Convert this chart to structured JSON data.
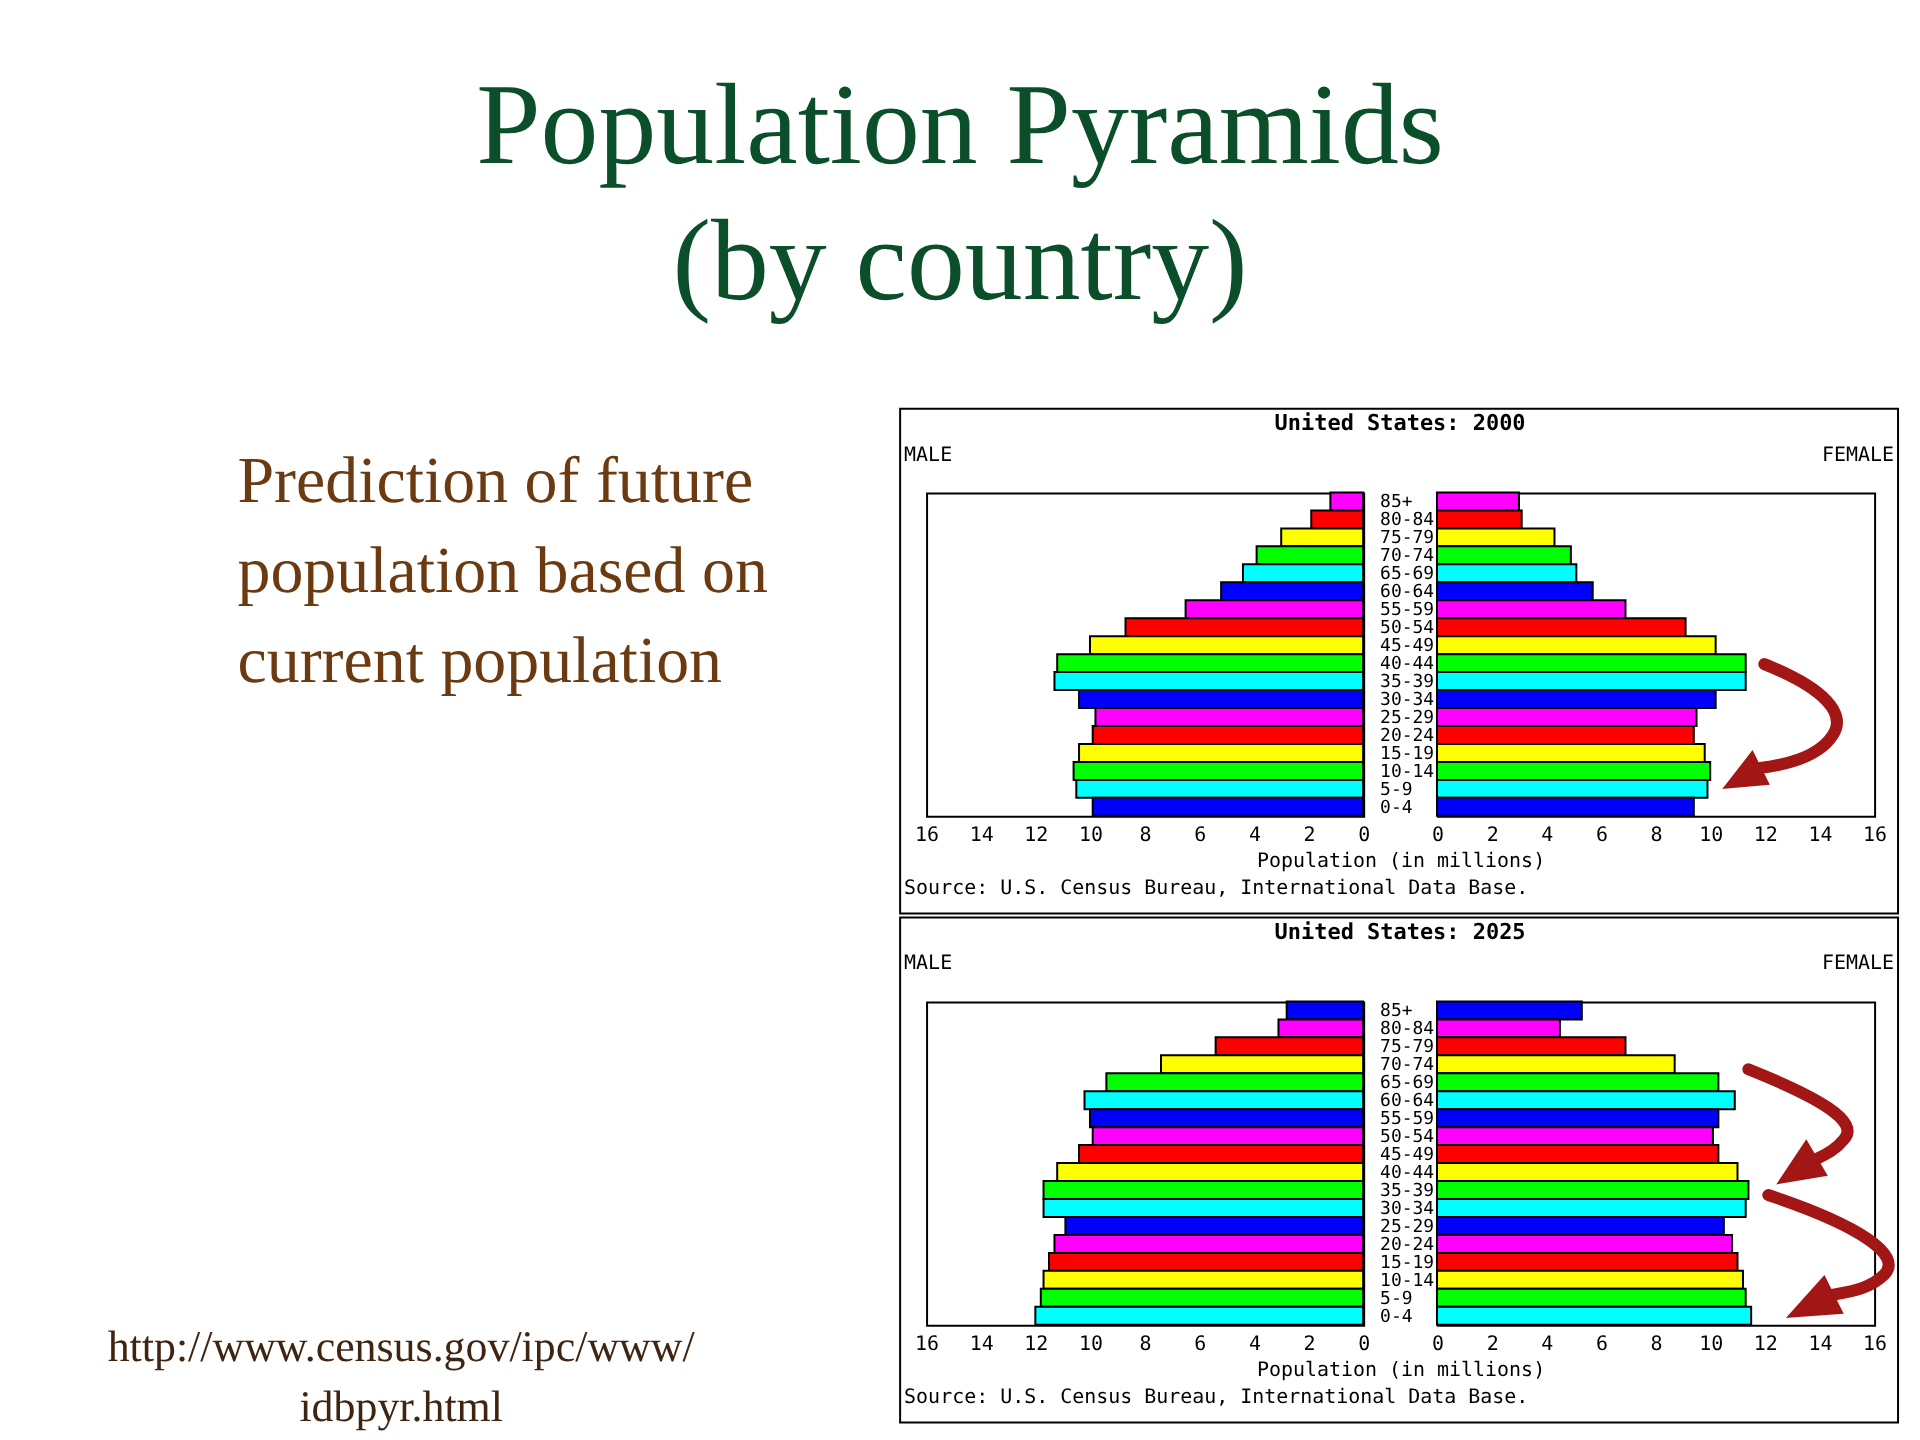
{
  "chart_data": [
    {
      "type": "other",
      "title": "Population Pyramids\n(by country)",
      "annotations": [
        "Prediction of future population based on current population",
        "http://www.census.gov/ipc/www/idbpyr.html"
      ]
    },
    {
      "type": "bar",
      "orientation": "horizontal",
      "title": "United States: 2000",
      "xlabel": "Population (in millions)",
      "annotations": [
        "Source: U.S. Census Bureau, International Data Base."
      ],
      "categories": [
        "85+",
        "80-84",
        "75-79",
        "70-74",
        "65-69",
        "60-64",
        "55-59",
        "50-54",
        "45-49",
        "40-44",
        "35-39",
        "30-34",
        "25-29",
        "20-24",
        "15-19",
        "10-14",
        "5-9",
        "0-4"
      ],
      "series": [
        {
          "name": "MALE",
          "colors": [
            "#ff00ff",
            "#ff0000",
            "#ffff00",
            "#00ff00",
            "#00ffff",
            "#0000ff",
            "#ff00ff",
            "#ff0000",
            "#ffff00",
            "#00ff00",
            "#00ffff",
            "#0000ff",
            "#ff00ff",
            "#ff0000",
            "#ffff00",
            "#00ff00",
            "#00ffff",
            "#0000ff"
          ],
          "values": [
            1.2,
            1.9,
            3.0,
            3.9,
            4.4,
            5.2,
            6.5,
            8.7,
            10.0,
            11.2,
            11.3,
            10.4,
            9.8,
            9.9,
            10.4,
            10.6,
            10.5,
            9.9
          ]
        }
      ],
      "xlim": [
        16,
        0
      ],
      "xticks": [
        16,
        14,
        12,
        10,
        8,
        6,
        4,
        2,
        0
      ],
      "tick_labels": "x"
    },
    {
      "type": "bar",
      "orientation": "horizontal",
      "categories": [
        "85+",
        "80-84",
        "75-79",
        "70-74",
        "65-69",
        "60-64",
        "55-59",
        "50-54",
        "45-49",
        "40-44",
        "35-39",
        "30-34",
        "25-29",
        "20-24",
        "15-19",
        "10-14",
        "5-9",
        "0-4"
      ],
      "series": [
        {
          "name": "FEMALE",
          "colors": [
            "#ff00ff",
            "#ff0000",
            "#ffff00",
            "#00ff00",
            "#00ffff",
            "#0000ff",
            "#ff00ff",
            "#ff0000",
            "#ffff00",
            "#00ff00",
            "#00ffff",
            "#0000ff",
            "#ff00ff",
            "#ff0000",
            "#ffff00",
            "#00ff00",
            "#00ffff",
            "#0000ff"
          ],
          "values": [
            3.0,
            3.1,
            4.3,
            4.9,
            5.1,
            5.7,
            6.9,
            9.1,
            10.2,
            11.3,
            11.3,
            10.2,
            9.5,
            9.4,
            9.8,
            10.0,
            9.9,
            9.4
          ]
        }
      ],
      "xlim": [
        0,
        16
      ],
      "xticks": [
        0,
        2,
        4,
        6,
        8,
        10,
        12,
        14,
        16
      ]
    },
    {
      "type": "bar",
      "orientation": "horizontal",
      "title": "United States: 2025",
      "xlabel": "Population (in millions)",
      "annotations": [
        "Source: U.S. Census Bureau, International Data Base."
      ],
      "categories": [
        "85+",
        "80-84",
        "75-79",
        "70-74",
        "65-69",
        "60-64",
        "55-59",
        "50-54",
        "45-49",
        "40-44",
        "35-39",
        "30-34",
        "25-29",
        "20-24",
        "15-19",
        "10-14",
        "5-9",
        "0-4"
      ],
      "series": [
        {
          "name": "MALE",
          "colors": [
            "#0000ff",
            "#ff00ff",
            "#ff0000",
            "#ffff00",
            "#00ff00",
            "#00ffff",
            "#0000ff",
            "#ff00ff",
            "#ff0000",
            "#ffff00",
            "#00ff00",
            "#00ffff",
            "#0000ff",
            "#ff00ff",
            "#ff0000",
            "#ffff00",
            "#00ff00",
            "#00ffff"
          ],
          "values": [
            2.8,
            3.1,
            5.4,
            7.4,
            9.4,
            10.2,
            10.0,
            9.9,
            10.4,
            11.2,
            11.7,
            11.7,
            10.9,
            11.3,
            11.5,
            11.7,
            11.8,
            12.0
          ]
        }
      ],
      "xlim": [
        16,
        0
      ],
      "xticks": [
        16,
        14,
        12,
        10,
        8,
        6,
        4,
        2,
        0
      ],
      "tick_labels": "x"
    },
    {
      "type": "bar",
      "orientation": "horizontal",
      "categories": [
        "85+",
        "80-84",
        "75-79",
        "70-74",
        "65-69",
        "60-64",
        "55-59",
        "50-54",
        "45-49",
        "40-44",
        "35-39",
        "30-34",
        "25-29",
        "20-24",
        "15-19",
        "10-14",
        "5-9",
        "0-4"
      ],
      "series": [
        {
          "name": "FEMALE",
          "colors": [
            "#0000ff",
            "#ff00ff",
            "#ff0000",
            "#ffff00",
            "#00ff00",
            "#00ffff",
            "#0000ff",
            "#ff00ff",
            "#ff0000",
            "#ffff00",
            "#00ff00",
            "#00ffff",
            "#0000ff",
            "#ff00ff",
            "#ff0000",
            "#ffff00",
            "#00ff00",
            "#00ffff"
          ],
          "values": [
            5.3,
            4.5,
            6.9,
            8.7,
            10.3,
            10.9,
            10.3,
            10.1,
            10.3,
            11.0,
            11.4,
            11.3,
            10.5,
            10.8,
            11.0,
            11.2,
            11.3,
            11.5
          ]
        }
      ],
      "xlim": [
        0,
        16
      ],
      "xticks": [
        0,
        2,
        4,
        6,
        8,
        10,
        12,
        14,
        16
      ]
    }
  ]
}
